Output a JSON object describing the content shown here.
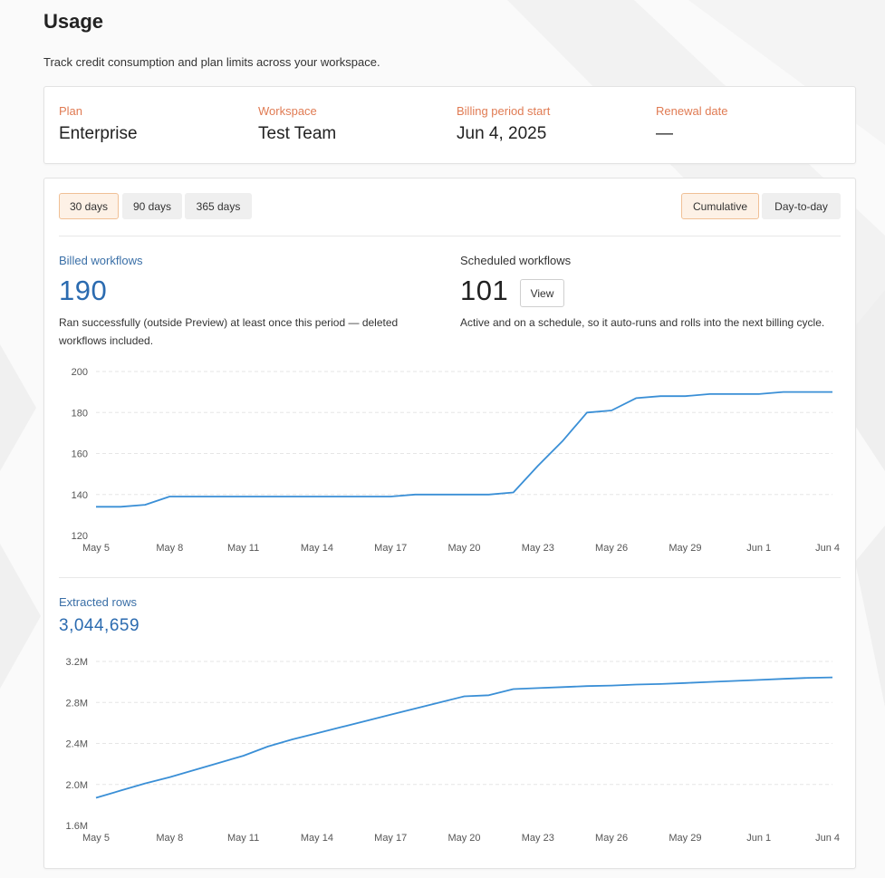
{
  "header": {
    "title": "Usage",
    "subtitle": "Track credit consumption and plan limits across your workspace."
  },
  "plan_info": [
    {
      "label": "Plan",
      "value": "Enterprise"
    },
    {
      "label": "Workspace",
      "value": "Test Team"
    },
    {
      "label": "Billing period start",
      "value": "Jun 4, 2025"
    },
    {
      "label": "Renewal date",
      "value": "—"
    }
  ],
  "range_buttons": [
    {
      "label": "30 days",
      "active": true
    },
    {
      "label": "90 days",
      "active": false
    },
    {
      "label": "365 days",
      "active": false
    }
  ],
  "mode_buttons": [
    {
      "label": "Cumulative",
      "active": true
    },
    {
      "label": "Day-to-day",
      "active": false
    }
  ],
  "billed": {
    "label": "Billed workflows",
    "value": "190",
    "description": "Ran successfully (outside Preview) at least once this period — deleted workflows included."
  },
  "scheduled": {
    "label": "Scheduled workflows",
    "value": "101",
    "view_label": "View",
    "description": "Active and on a schedule, so it auto-runs and rolls into the next billing cycle."
  },
  "extracted": {
    "label": "Extracted rows",
    "value": "3,044,659"
  },
  "colors": {
    "accent_orange": "#e07b53",
    "line_blue": "#3a8fd6",
    "metric_blue": "#2b6bb0"
  },
  "chart_data": [
    {
      "type": "line",
      "series_name": "Billed workflows",
      "x_tick_labels": [
        "May 5",
        "May 8",
        "May 11",
        "May 14",
        "May 17",
        "May 20",
        "May 23",
        "May 26",
        "May 29",
        "Jun 1",
        "Jun 4"
      ],
      "y_tick_labels": [
        "120",
        "140",
        "160",
        "180",
        "200"
      ],
      "ylim": [
        120,
        200
      ],
      "x_day_range": [
        0,
        30
      ],
      "grid": true,
      "points": [
        [
          0,
          134
        ],
        [
          1,
          134
        ],
        [
          2,
          135
        ],
        [
          3,
          139
        ],
        [
          4,
          139
        ],
        [
          5,
          139
        ],
        [
          6,
          139
        ],
        [
          7,
          139
        ],
        [
          8,
          139
        ],
        [
          9,
          139
        ],
        [
          10,
          139
        ],
        [
          11,
          139
        ],
        [
          12,
          139
        ],
        [
          13,
          140
        ],
        [
          14,
          140
        ],
        [
          15,
          140
        ],
        [
          16,
          140
        ],
        [
          17,
          141
        ],
        [
          18,
          154
        ],
        [
          19,
          166
        ],
        [
          20,
          180
        ],
        [
          21,
          181
        ],
        [
          22,
          187
        ],
        [
          23,
          188
        ],
        [
          24,
          188
        ],
        [
          25,
          189
        ],
        [
          26,
          189
        ],
        [
          27,
          189
        ],
        [
          28,
          190
        ],
        [
          29,
          190
        ],
        [
          30,
          190
        ]
      ]
    },
    {
      "type": "line",
      "series_name": "Extracted rows",
      "x_tick_labels": [
        "May 5",
        "May 8",
        "May 11",
        "May 14",
        "May 17",
        "May 20",
        "May 23",
        "May 26",
        "May 29",
        "Jun 1",
        "Jun 4"
      ],
      "y_tick_labels": [
        "1.6M",
        "2.0M",
        "2.4M",
        "2.8M",
        "3.2M"
      ],
      "ylim": [
        1600000,
        3200000
      ],
      "x_day_range": [
        0,
        30
      ],
      "grid": true,
      "points": [
        [
          0,
          1870000
        ],
        [
          1,
          1940000
        ],
        [
          2,
          2010000
        ],
        [
          3,
          2070000
        ],
        [
          4,
          2140000
        ],
        [
          5,
          2210000
        ],
        [
          6,
          2280000
        ],
        [
          7,
          2370000
        ],
        [
          8,
          2440000
        ],
        [
          9,
          2500000
        ],
        [
          10,
          2560000
        ],
        [
          11,
          2620000
        ],
        [
          12,
          2680000
        ],
        [
          13,
          2740000
        ],
        [
          14,
          2800000
        ],
        [
          15,
          2860000
        ],
        [
          16,
          2870000
        ],
        [
          17,
          2930000
        ],
        [
          18,
          2940000
        ],
        [
          19,
          2950000
        ],
        [
          20,
          2960000
        ],
        [
          21,
          2965000
        ],
        [
          22,
          2975000
        ],
        [
          23,
          2980000
        ],
        [
          24,
          2990000
        ],
        [
          25,
          3000000
        ],
        [
          26,
          3010000
        ],
        [
          27,
          3020000
        ],
        [
          28,
          3030000
        ],
        [
          29,
          3040000
        ],
        [
          30,
          3044659
        ]
      ]
    }
  ]
}
